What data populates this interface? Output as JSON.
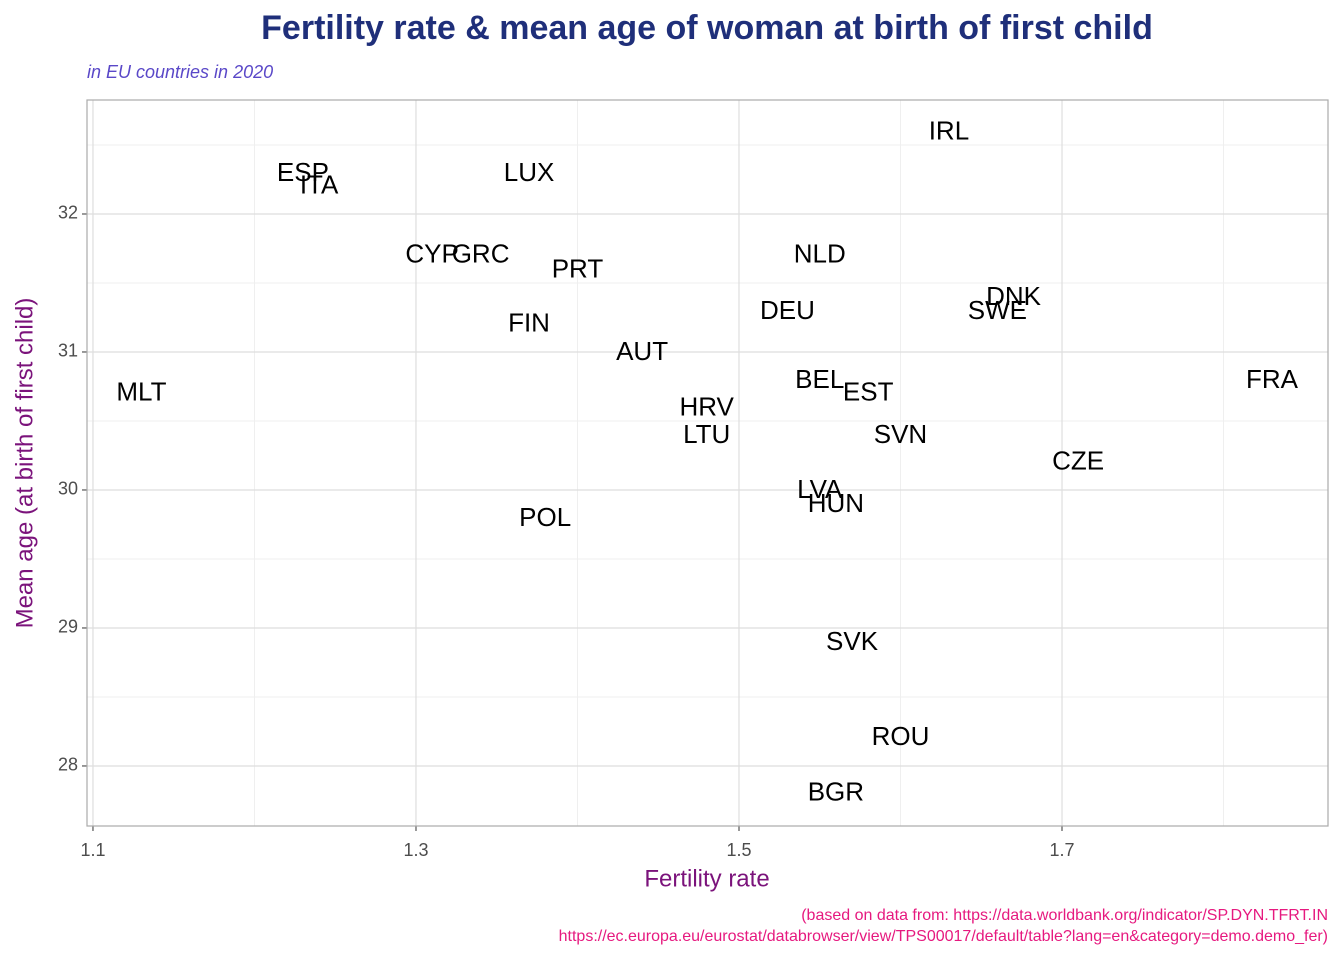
{
  "chart_data": {
    "type": "scatter",
    "title": "Fertility rate & mean age of woman at birth of first child",
    "subtitle": "in EU countries in 2020",
    "x_label": "Fertility rate",
    "y_label": "Mean age (at birth of first child)",
    "caption": [
      "(based on data from: https://data.worldbank.org/indicator/SP.DYN.TFRT.IN",
      "https://ec.europa.eu/eurostat/databrowser/view/TPS00017/default/table?lang=en&category=demo.demo_fer)"
    ],
    "labels": [
      "MLT",
      "ESP",
      "ITA",
      "LUX",
      "CYP",
      "GRC",
      "PRT",
      "FIN",
      "AUT",
      "HRV",
      "LTU",
      "POL",
      "NLD",
      "DEU",
      "BEL",
      "EST",
      "SVN",
      "LVA",
      "HUN",
      "SVK",
      "ROU",
      "BGR",
      "IRL",
      "DNK",
      "SWE",
      "CZE",
      "FRA"
    ],
    "x": [
      1.13,
      1.23,
      1.24,
      1.37,
      1.31,
      1.34,
      1.4,
      1.37,
      1.44,
      1.48,
      1.48,
      1.38,
      1.55,
      1.53,
      1.55,
      1.58,
      1.6,
      1.55,
      1.56,
      1.57,
      1.6,
      1.56,
      1.63,
      1.67,
      1.66,
      1.71,
      1.83
    ],
    "y": [
      30.7,
      32.29,
      32.2,
      32.29,
      31.7,
      31.7,
      31.59,
      31.2,
      30.99,
      30.59,
      30.39,
      29.79,
      31.7,
      31.29,
      30.79,
      30.7,
      30.39,
      29.99,
      29.89,
      28.89,
      28.2,
      27.8,
      32.59,
      31.39,
      31.29,
      30.2,
      30.79
    ],
    "color": "#000000",
    "xlim": [
      1.0963,
      1.8647
    ],
    "ylim": [
      27.565,
      32.826
    ],
    "xticks": [
      1.1,
      1.3,
      1.5,
      1.7
    ],
    "yticks": [
      28,
      29,
      30,
      31,
      32
    ],
    "grid": true
  }
}
